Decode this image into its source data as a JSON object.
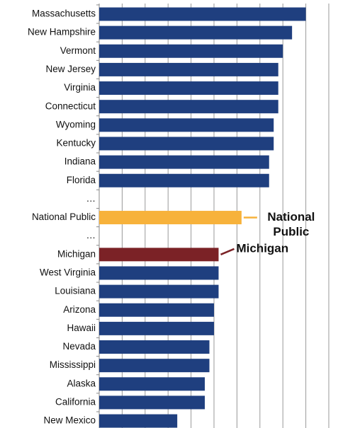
{
  "chart_data": {
    "type": "bar",
    "orientation": "horizontal",
    "categories": [
      "Massachusetts",
      "New Hampshire",
      "Vermont",
      "New Jersey",
      "Virginia",
      "Connecticut",
      "Wyoming",
      "Kentucky",
      "Indiana",
      "Florida",
      "…",
      "National Public",
      "…",
      "Michigan",
      "West Virginia",
      "Louisiana",
      "Arizona",
      "Hawaii",
      "Nevada",
      "Mississippi",
      "Alaska",
      "California",
      "New Mexico"
    ],
    "values": [
      9.0,
      8.4,
      8.0,
      7.8,
      7.8,
      7.8,
      7.6,
      7.6,
      7.4,
      7.4,
      null,
      6.2,
      null,
      5.2,
      5.2,
      5.2,
      5.0,
      5.0,
      4.8,
      4.8,
      4.6,
      4.6,
      3.4
    ],
    "color": "#1f3f7f",
    "xlim": [
      0,
      10
    ],
    "xticks": [
      0,
      1,
      2,
      3,
      4,
      5,
      6,
      7,
      8,
      9,
      10
    ],
    "grid": true,
    "grid_color": "#999999",
    "annotations": [
      {
        "target": "National Public",
        "lines": [
          "National",
          "Public"
        ],
        "color": "#f7b23b"
      },
      {
        "target": "Michigan",
        "lines": [
          "Michigan"
        ],
        "color": "#7b2226"
      }
    ]
  }
}
